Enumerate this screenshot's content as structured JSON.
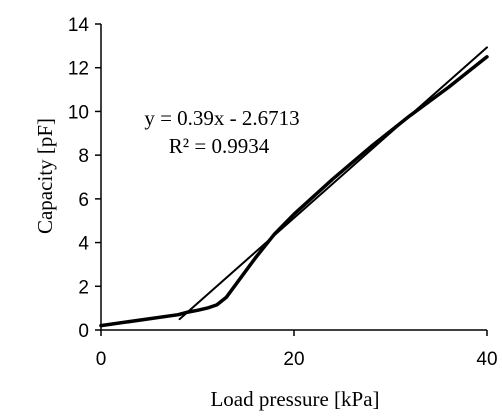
{
  "chart_data": {
    "type": "line",
    "title": "",
    "xlabel": "Load pressure [kPa]",
    "ylabel": "Capacity [pF]",
    "xlim": [
      0,
      40
    ],
    "ylim": [
      0,
      14
    ],
    "x_ticks": [
      "0",
      "20",
      "40"
    ],
    "y_ticks": [
      "0",
      "2",
      "4",
      "6",
      "8",
      "10",
      "12",
      "14"
    ],
    "grid": false,
    "legend": "none",
    "series": [
      {
        "x": [
          0,
          8,
          9,
          10,
          11,
          12,
          13,
          14,
          16,
          18,
          20,
          24,
          28,
          32,
          36,
          40
        ],
        "y": [
          0.2,
          0.7,
          0.82,
          0.9,
          1.0,
          1.15,
          1.5,
          2.1,
          3.3,
          4.4,
          5.3,
          6.9,
          8.4,
          9.8,
          11.1,
          12.5
        ]
      },
      {
        "x": [
          8.15,
          40
        ],
        "y": [
          0.5,
          12.93
        ]
      }
    ],
    "annotations": [
      "y = 0.39x - 2.6713",
      "R² = 0.9934"
    ],
    "colors": {
      "line": "#000000",
      "axis": "#000000"
    }
  }
}
